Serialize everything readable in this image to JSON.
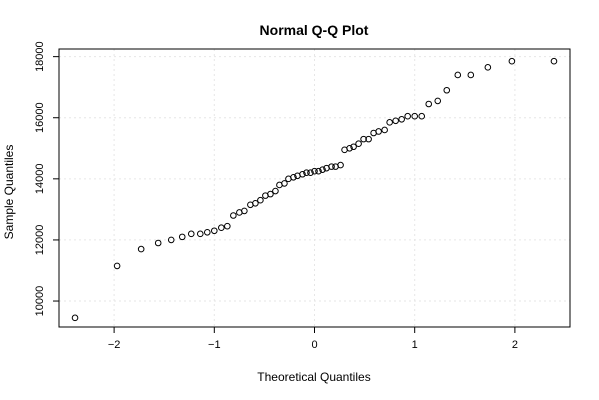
{
  "chart_data": {
    "type": "scatter",
    "title": "Normal Q-Q Plot",
    "xlabel": "Theoretical Quantiles",
    "ylabel": "Sample Quantiles",
    "xlim": [
      -2.55,
      2.55
    ],
    "ylim": [
      9150,
      18250
    ],
    "xticks": [
      -2,
      -1,
      0,
      1,
      2
    ],
    "xtick_labels": [
      "−2",
      "−1",
      "0",
      "1",
      "2"
    ],
    "yticks": [
      10000,
      12000,
      14000,
      16000,
      18000
    ],
    "ytick_labels": [
      "10000",
      "12000",
      "14000",
      "16000",
      "18000"
    ],
    "grid": true,
    "marker": "open-circle",
    "x": [
      -2.39,
      -1.97,
      -1.73,
      -1.56,
      -1.43,
      -1.32,
      -1.23,
      -1.14,
      -1.07,
      -1.0,
      -0.93,
      -0.87,
      -0.81,
      -0.75,
      -0.7,
      -0.64,
      -0.59,
      -0.54,
      -0.49,
      -0.44,
      -0.39,
      -0.35,
      -0.3,
      -0.26,
      -0.21,
      -0.17,
      -0.12,
      -0.08,
      -0.04,
      0.0,
      0.04,
      0.08,
      0.12,
      0.17,
      0.21,
      0.26,
      0.3,
      0.35,
      0.39,
      0.44,
      0.49,
      0.54,
      0.59,
      0.64,
      0.7,
      0.75,
      0.81,
      0.87,
      0.93,
      1.0,
      1.07,
      1.14,
      1.23,
      1.32,
      1.43,
      1.56,
      1.73,
      1.97,
      2.39
    ],
    "y": [
      9450,
      11150,
      11700,
      11900,
      12000,
      12100,
      12200,
      12200,
      12250,
      12300,
      12400,
      12450,
      12800,
      12900,
      12950,
      13150,
      13200,
      13300,
      13450,
      13500,
      13600,
      13800,
      13850,
      14000,
      14050,
      14100,
      14150,
      14200,
      14200,
      14250,
      14250,
      14300,
      14350,
      14400,
      14400,
      14450,
      14950,
      15000,
      15050,
      15150,
      15300,
      15300,
      15500,
      15550,
      15600,
      15850,
      15900,
      15950,
      16050,
      16050,
      16050,
      16450,
      16550,
      16900,
      17400,
      17400,
      17650,
      17850,
      17850
    ]
  }
}
